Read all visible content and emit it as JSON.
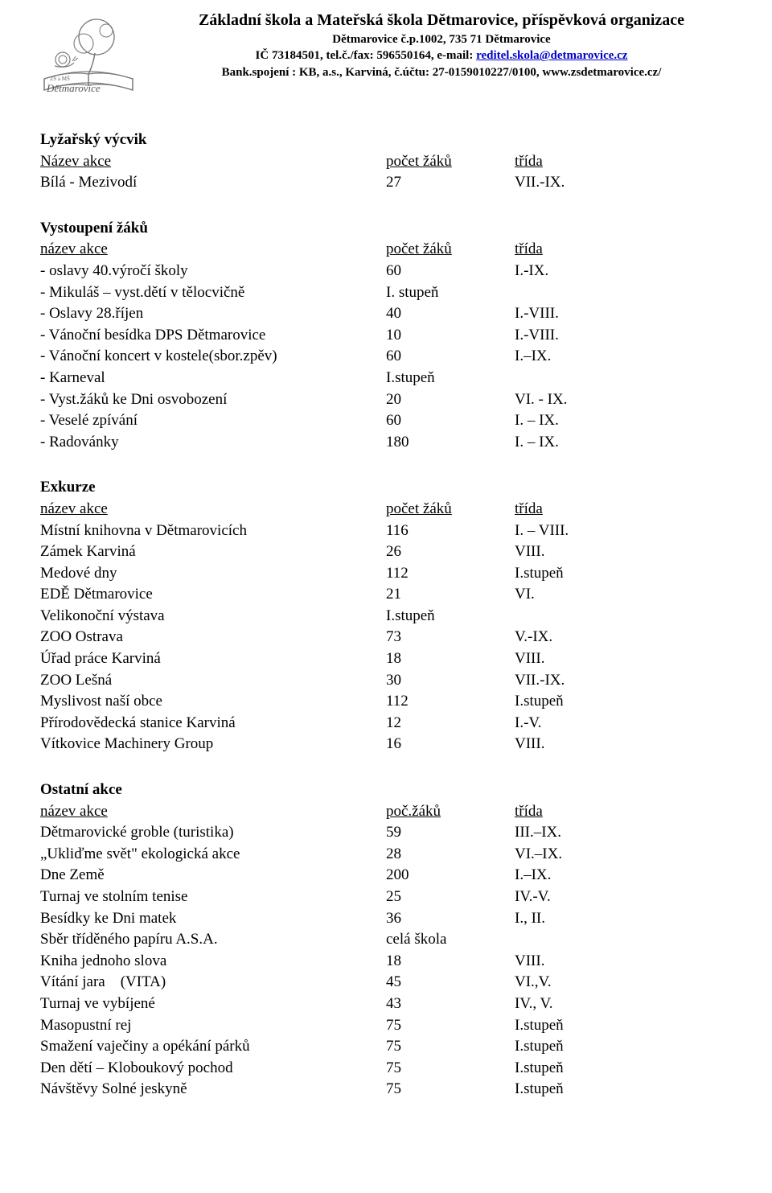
{
  "header": {
    "title": "Základní škola a Mateřská škola Dětmarovice, příspěvková organizace",
    "line1": "Dětmarovice č.p.1002, 735 71 Dětmarovice",
    "line2a": "IČ 73184501, tel.č./fax: 596550164, e-mail: ",
    "email": "reditel.skola@detmarovice.cz",
    "line3": "Bank.spojení : KB, a.s., Karviná, č.účtu: 27-0159010227/0100, www.zsdetmarovice.cz/",
    "logo_text_top": "ZŠ a MŠ",
    "logo_text_bottom": "Dětmarovice"
  },
  "sections": {
    "ski": {
      "title": "Lyžařský výcvik",
      "head_name": "Název akce",
      "head_count": "počet žáků",
      "head_class": "třída",
      "rows": [
        {
          "name": "Bílá - Mezivodí",
          "count": "27",
          "class": "VII.-IX."
        }
      ]
    },
    "perf": {
      "title": "Vystoupení žáků",
      "head_name": "název akce",
      "head_count": "počet žáků",
      "head_class": "třída",
      "rows": [
        {
          "name": "- oslavy 40.výročí školy",
          "count": "60",
          "class": "I.-IX."
        },
        {
          "name": "- Mikuláš – vyst.dětí v tělocvičně",
          "count": "I. stupeň",
          "class": ""
        },
        {
          "name": "- Oslavy 28.říjen",
          "count": "40",
          "class": "I.-VIII."
        },
        {
          "name": "- Vánoční besídka DPS Dětmarovice",
          "count": "10",
          "class": "I.-VIII."
        },
        {
          "name": "- Vánoční koncert v kostele(sbor.zpěv)",
          "count": "60",
          "class": "I.–IX."
        },
        {
          "name": "- Karneval",
          "count": "I.stupeň",
          "class": ""
        },
        {
          "name": "- Vyst.žáků ke Dni osvobození",
          "count": "20",
          "class": "VI. - IX."
        },
        {
          "name": "- Veselé zpívání",
          "count": "60",
          "class": "I. – IX."
        },
        {
          "name": "- Radovánky",
          "count": "180",
          "class": "I. – IX."
        }
      ]
    },
    "exk": {
      "title": "Exkurze",
      "head_name": "název akce",
      "head_count": "počet žáků",
      "head_class": "třída",
      "rows": [
        {
          "name": "Místní knihovna v Dětmarovicích",
          "count": "116",
          "class": "I. – VIII."
        },
        {
          "name": "Zámek  Karviná",
          "count": "26",
          "class": "VIII."
        },
        {
          "name": "Medové dny",
          "count": "112",
          "class": "I.stupeň"
        },
        {
          "name": "EDĚ Dětmarovice",
          "count": "21",
          "class": "VI."
        },
        {
          "name": "Velikonoční výstava",
          "count": "I.stupeň",
          "class": ""
        },
        {
          "name": "ZOO Ostrava",
          "count": "73",
          "class": "V.-IX."
        },
        {
          "name": "Úřad práce Karviná",
          "count": "18",
          "class": "VIII."
        },
        {
          "name": "ZOO Lešná",
          "count": "30",
          "class": "VII.-IX."
        },
        {
          "name": "Myslivost naší obce",
          "count": "112",
          "class": "I.stupeň"
        },
        {
          "name": "Přírodovědecká stanice Karviná",
          "count": "12",
          "class": "I.-V."
        },
        {
          "name": "Vítkovice Machinery Group",
          "count": "16",
          "class": "VIII."
        }
      ]
    },
    "other": {
      "title": "Ostatní akce",
      "head_name": "název akce",
      "head_count": "poč.žáků",
      "head_class": "třída",
      "rows": [
        {
          "name": "Dětmarovické groble (turistika)",
          "count": "59",
          "class": "III.–IX."
        },
        {
          "name": "„Ukliďme svět\" ekologická akce",
          "count": "28",
          "class": "VI.–IX."
        },
        {
          "name": "Dne Země",
          "count": "200",
          "class": "I.–IX."
        },
        {
          "name": "Turnaj ve stolním tenise",
          "count": "25",
          "class": "IV.-V."
        },
        {
          "name": "Besídky ke Dni matek",
          "count": "36",
          "class": "I., II."
        },
        {
          "name": "Sběr tříděného papíru A.S.A.",
          "count": "celá škola",
          "class": ""
        },
        {
          "name": "Kniha jednoho slova",
          "count": "18",
          "class": "VIII."
        },
        {
          "name": "Vítání jara (VITA)",
          "count": "45",
          "class": "VI.,V."
        },
        {
          "name": "Turnaj ve vybíjené",
          "count": "43",
          "class": "IV., V."
        },
        {
          "name": "Masopustní rej",
          "count": "75",
          "class": "I.stupeň"
        },
        {
          "name": "Smažení vaječiny a opékání párků",
          "count": "75",
          "class": "I.stupeň"
        },
        {
          "name": "Den dětí – Kloboukový pochod",
          "count": "75",
          "class": "I.stupeň"
        },
        {
          "name": "Návštěvy Solné jeskyně",
          "count": "75",
          "class": "I.stupeň"
        }
      ]
    }
  }
}
